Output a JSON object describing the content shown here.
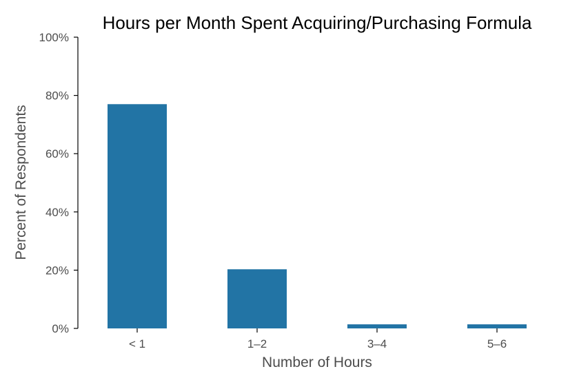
{
  "chart_data": {
    "type": "bar",
    "title": "Hours per Month Spent Acquiring/Purchasing Formula",
    "xlabel": "Number of Hours",
    "ylabel": "Percent of Respondents",
    "categories": [
      "< 1",
      "1–2",
      "3–4",
      "5–6"
    ],
    "values": [
      77,
      20.3,
      1.4,
      1.4
    ],
    "ylim": [
      0,
      100
    ],
    "yticks": [
      0,
      20,
      40,
      60,
      80,
      100
    ],
    "ytick_labels": [
      "0%",
      "20%",
      "40%",
      "60%",
      "80%",
      "100%"
    ],
    "grid": false,
    "legend": "none",
    "bar_color": "#2274a5"
  }
}
